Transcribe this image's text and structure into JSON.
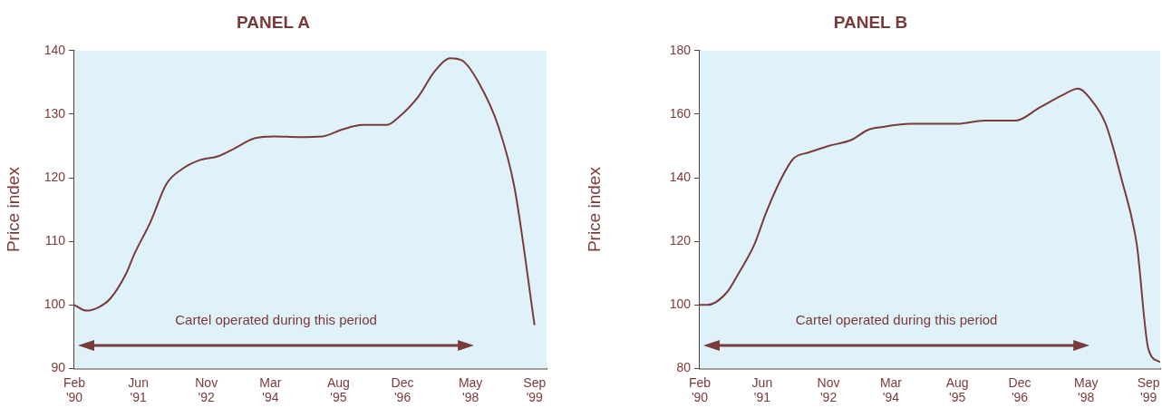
{
  "chart_data": [
    {
      "type": "line",
      "title": "PANEL A",
      "ylabel": "Price index",
      "color": "#7b3b3b",
      "marker": "none",
      "grid": false,
      "legend": false,
      "x": [
        "1990-02",
        "1990-05",
        "1990-08",
        "1990-11",
        "1991-03",
        "1991-05",
        "1991-09",
        "1992-01",
        "1992-05",
        "1992-09",
        "1993-02",
        "1993-06",
        "1993-11",
        "1994-04",
        "1994-10",
        "1995-04",
        "1995-09",
        "1996-02",
        "1996-08",
        "1996-11",
        "1997-04",
        "1997-08",
        "1997-12",
        "1998-03",
        "1998-07",
        "1998-12",
        "1999-04",
        "1999-09"
      ],
      "values": [
        100,
        99.1,
        99.6,
        101,
        105,
        108,
        113,
        119,
        121.4,
        122.7,
        123.4,
        124.6,
        126.2,
        126.5,
        126.4,
        126.5,
        127.6,
        128.3,
        128.3,
        129.5,
        132.8,
        136.7,
        138.8,
        138.4,
        135,
        128,
        118.4,
        96.8
      ],
      "xlim": [
        "1990-02",
        "1999-12"
      ],
      "ylim": [
        90,
        140
      ],
      "yticks": [
        90,
        100,
        110,
        120,
        130,
        140
      ],
      "xticks": [
        {
          "value": "1990-02",
          "label": "Feb '90"
        },
        {
          "value": "1991-06",
          "label": "Jun '91"
        },
        {
          "value": "1992-11",
          "label": "Nov '92"
        },
        {
          "value": "1994-03",
          "label": "Mar '94"
        },
        {
          "value": "1995-08",
          "label": "Aug '95"
        },
        {
          "value": "1996-12",
          "label": "Dec '96"
        },
        {
          "value": "1998-05",
          "label": "May '98"
        },
        {
          "value": "1999-09",
          "label": "Sep '99"
        }
      ],
      "annotations": [
        "Cartel operated during this period"
      ]
    },
    {
      "type": "line",
      "title": "PANEL B",
      "ylabel": "Price index",
      "color": "#7b3b3b",
      "marker": "none",
      "grid": false,
      "legend": false,
      "x": [
        "1990-02",
        "1990-04",
        "1990-09",
        "1990-12",
        "1991-04",
        "1991-07",
        "1991-11",
        "1992-02",
        "1992-06",
        "1992-11",
        "1993-05",
        "1993-09",
        "1994-01",
        "1994-08",
        "1995-03",
        "1995-08",
        "1996-03",
        "1996-08",
        "1996-11",
        "1997-05",
        "1997-11",
        "1998-03",
        "1998-06",
        "1998-10",
        "1999-02",
        "1999-06",
        "1999-09",
        "1999-12"
      ],
      "values": [
        100,
        100,
        104,
        110,
        119,
        129,
        140,
        146,
        148,
        150,
        152,
        155,
        156,
        157,
        157,
        157,
        158,
        158,
        158,
        162,
        166,
        168,
        165,
        157,
        140,
        119,
        86,
        82
      ],
      "xlim": [
        "1990-02",
        "1999-12"
      ],
      "ylim": [
        80,
        180
      ],
      "yticks": [
        80,
        100,
        120,
        140,
        160,
        180
      ],
      "xticks": [
        {
          "value": "1990-02",
          "label": "Feb '90"
        },
        {
          "value": "1991-06",
          "label": "Jun '91"
        },
        {
          "value": "1992-11",
          "label": "Nov '92"
        },
        {
          "value": "1994-03",
          "label": "Mar '94"
        },
        {
          "value": "1995-08",
          "label": "Aug '95"
        },
        {
          "value": "1996-12",
          "label": "Dec '96"
        },
        {
          "value": "1998-05",
          "label": "May '98"
        },
        {
          "value": "1999-09",
          "label": "Sep '99"
        }
      ],
      "annotations": [
        "Cartel operated during this period"
      ]
    }
  ]
}
